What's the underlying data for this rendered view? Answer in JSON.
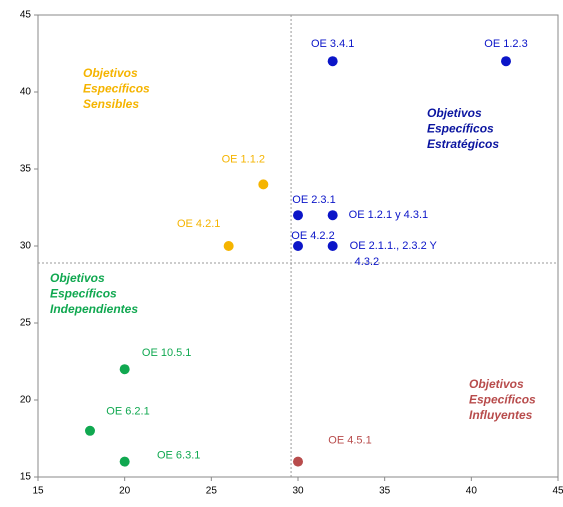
{
  "chart_data": {
    "type": "scatter",
    "x": [
      32,
      42,
      28,
      30,
      32,
      26,
      30,
      32,
      20,
      18,
      20,
      30
    ],
    "values": [
      42,
      42,
      34,
      32,
      32,
      30,
      30,
      30,
      22,
      18,
      16,
      16
    ],
    "labels": [
      "OE 3.4.1",
      "OE 1.2.3",
      "OE 1.1.2",
      "OE 2.3.1",
      "OE 1.2.1 y 4.3.1",
      "OE 4.2.1",
      "OE 4.2.2",
      [
        "OE 2.1.1., 2.3.2 Y",
        "4.3.2"
      ],
      "OE 10.5.1",
      "OE 6.2.1",
      "OE 6.3.1",
      "OE 4.5.1"
    ],
    "colors": [
      "#0b15c8",
      "#0b15c8",
      "#f5b400",
      "#0b15c8",
      "#0b15c8",
      "#f5b400",
      "#0b15c8",
      "#0b15c8",
      "#10a850",
      "#10a850",
      "#10a850",
      "#b84c4c"
    ],
    "xlim": [
      15,
      45
    ],
    "ylim": [
      15,
      45
    ],
    "xticks": [
      15,
      20,
      25,
      30,
      35,
      40,
      45
    ],
    "yticks": [
      15,
      20,
      25,
      30,
      35,
      40,
      45
    ],
    "quadrant_lines": {
      "x": 29.6,
      "y": 28.9
    },
    "quadrant_labels": [
      {
        "lines": [
          "Objetivos",
          "Específicos",
          "Sensibles"
        ],
        "color": "#f5b400"
      },
      {
        "lines": [
          "Objetivos",
          "Específicos",
          "Estratégicos"
        ],
        "color": "#0b15a0"
      },
      {
        "lines": [
          "Objetivos",
          "Específicos",
          "Independientes"
        ],
        "color": "#10a850"
      },
      {
        "lines": [
          "Objetivos",
          "Específicos",
          "Influyentes"
        ],
        "color": "#b84c4c"
      }
    ]
  }
}
